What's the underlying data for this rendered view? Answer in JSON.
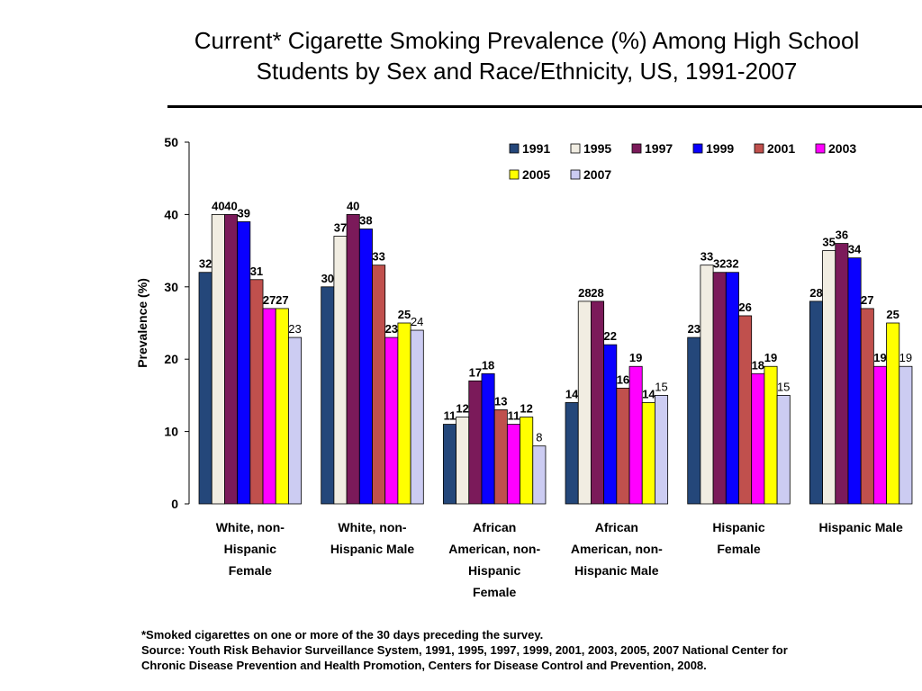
{
  "title_line1": "Current* Cigarette Smoking Prevalence (%) Among High School",
  "title_line2": "Students by Sex and Race/Ethnicity, US, 1991-2007",
  "footnote": {
    "asterisk_note": "*Smoked cigarettes on one or more of the 30 days preceding the survey.",
    "source_line1": "Source: Youth Risk Behavior Surveillance System, 1991, 1995, 1997, 1999, 2001, 2003, 2005, 2007 National Center for",
    "source_line2": "Chronic Disease Prevention and Health Promotion, Centers for Disease Control and Prevention, 2008."
  },
  "chart_data": {
    "type": "bar",
    "title": "Current* Cigarette Smoking Prevalence (%) Among High School Students by Sex and Race/Ethnicity, US, 1991-2007",
    "xlabel": "",
    "ylabel": "Prevalence (%)",
    "ylim": [
      0,
      50
    ],
    "yticks": [
      0,
      10,
      20,
      30,
      40,
      50
    ],
    "grid": false,
    "legend_position": "top-right",
    "categories": [
      [
        "White, non-",
        "Hispanic",
        "Female"
      ],
      [
        "White, non-",
        "Hispanic Male"
      ],
      [
        "African",
        "American, non-",
        "Hispanic",
        "Female"
      ],
      [
        "African",
        "American, non-",
        "Hispanic Male"
      ],
      [
        "Hispanic",
        "Female"
      ],
      [
        "Hispanic Male"
      ]
    ],
    "series": [
      {
        "name": "1991",
        "color": "#24477a",
        "label_bold": true,
        "values": [
          32,
          30,
          11,
          14,
          23,
          28
        ]
      },
      {
        "name": "1995",
        "color": "#f1ede2",
        "label_bold": true,
        "values": [
          40,
          37,
          12,
          28,
          33,
          35
        ]
      },
      {
        "name": "1997",
        "color": "#7b1a5a",
        "label_bold": true,
        "values": [
          40,
          40,
          17,
          28,
          32,
          36
        ]
      },
      {
        "name": "1999",
        "color": "#0a00ff",
        "label_bold": true,
        "values": [
          39,
          38,
          18,
          22,
          32,
          34
        ]
      },
      {
        "name": "2001",
        "color": "#c0504d",
        "label_bold": true,
        "values": [
          31,
          33,
          13,
          16,
          26,
          27
        ]
      },
      {
        "name": "2003",
        "color": "#ff00ff",
        "label_bold": true,
        "values": [
          27,
          23,
          11,
          19,
          18,
          19
        ]
      },
      {
        "name": "2005",
        "color": "#ffff00",
        "label_bold": true,
        "values": [
          27,
          25,
          12,
          14,
          19,
          25
        ]
      },
      {
        "name": "2007",
        "color": "#ccccf2",
        "label_bold": false,
        "values": [
          23,
          24,
          8,
          15,
          15,
          19
        ]
      }
    ]
  }
}
